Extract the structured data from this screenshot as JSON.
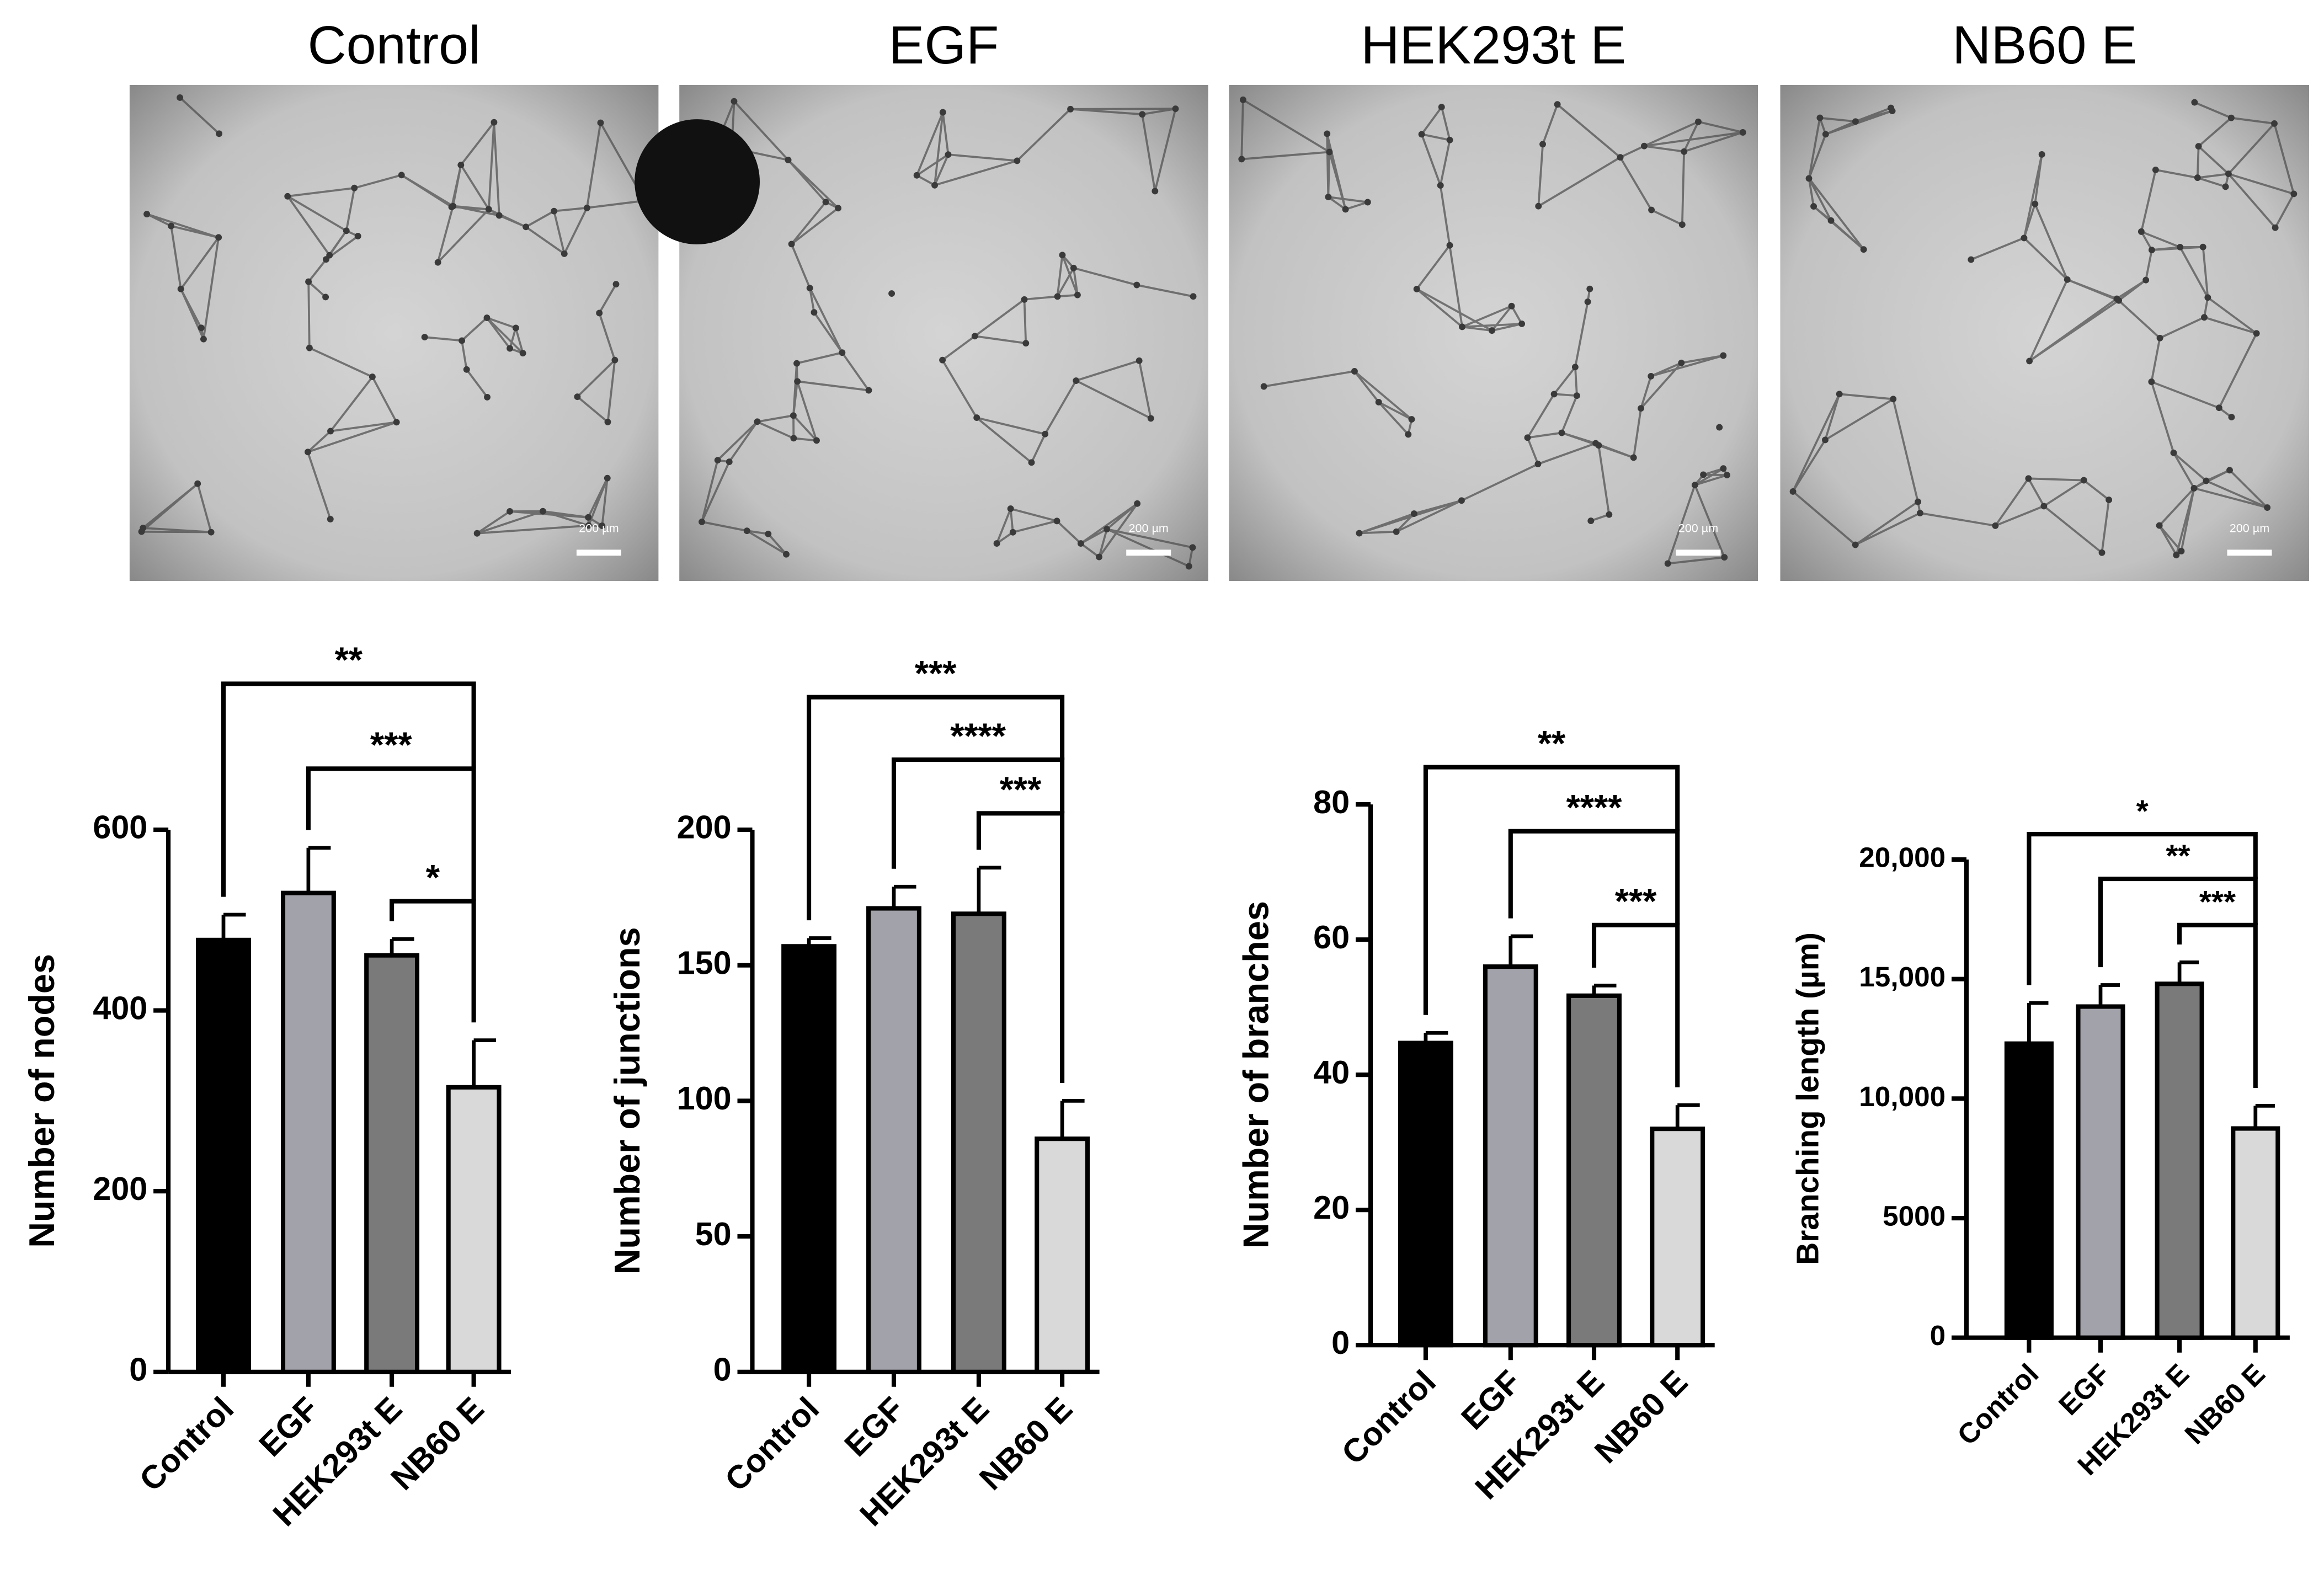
{
  "images": [
    {
      "title": "Control",
      "scale_label": "200 µm"
    },
    {
      "title": "EGF",
      "scale_label": "200 µm"
    },
    {
      "title": "HEK293t E",
      "scale_label": "200 µm"
    },
    {
      "title": "NB60 E",
      "scale_label": "200 µm"
    }
  ],
  "chart_data": [
    {
      "type": "bar",
      "y_label": "Number of nodes",
      "categories": [
        "Control",
        "EGF",
        "HEK293t E",
        "NB60 E"
      ],
      "values": [
        478,
        530,
        461,
        315
      ],
      "errors": [
        28,
        50,
        18,
        52
      ],
      "colors": [
        "#000000",
        "#a2a2aa",
        "#7a7a7a",
        "#d9d9d9"
      ],
      "ylim": [
        0,
        600
      ],
      "yticks": [
        0,
        200,
        400,
        600
      ],
      "comparisons": [
        {
          "from": 0,
          "to": 3,
          "label": "**"
        },
        {
          "from": 1,
          "to": 3,
          "label": "***"
        },
        {
          "from": 2,
          "to": 3,
          "label": "*"
        }
      ]
    },
    {
      "type": "bar",
      "y_label": "Number of junctions",
      "categories": [
        "Control",
        "EGF",
        "HEK293t E",
        "NB60 E"
      ],
      "values": [
        157,
        171,
        169,
        86
      ],
      "errors": [
        3,
        8,
        17,
        14
      ],
      "colors": [
        "#000000",
        "#a2a2aa",
        "#7a7a7a",
        "#d9d9d9"
      ],
      "ylim": [
        0,
        200
      ],
      "yticks": [
        0,
        50,
        100,
        150,
        200
      ],
      "comparisons": [
        {
          "from": 0,
          "to": 3,
          "label": "***"
        },
        {
          "from": 1,
          "to": 3,
          "label": "****"
        },
        {
          "from": 2,
          "to": 3,
          "label": "***"
        }
      ]
    },
    {
      "type": "bar",
      "y_label": "Number of branches",
      "categories": [
        "Control",
        "EGF",
        "HEK293t E",
        "NB60 E"
      ],
      "values": [
        44.7,
        56,
        51.7,
        32
      ],
      "errors": [
        1.5,
        4.5,
        1.5,
        3.5
      ],
      "colors": [
        "#000000",
        "#a2a2aa",
        "#7a7a7a",
        "#d9d9d9"
      ],
      "ylim": [
        0,
        80
      ],
      "yticks": [
        0,
        20,
        40,
        60,
        80
      ],
      "comparisons": [
        {
          "from": 0,
          "to": 3,
          "label": "**"
        },
        {
          "from": 1,
          "to": 3,
          "label": "****"
        },
        {
          "from": 2,
          "to": 3,
          "label": "***"
        }
      ]
    },
    {
      "type": "bar",
      "y_label": "Branching length (µm)",
      "categories": [
        "Control",
        "EGF",
        "HEK293t E",
        "NB60 E"
      ],
      "values": [
        12300,
        13850,
        14800,
        8750
      ],
      "errors": [
        1700,
        900,
        900,
        950
      ],
      "colors": [
        "#000000",
        "#a2a2aa",
        "#7a7a7a",
        "#d9d9d9"
      ],
      "ylim": [
        0,
        20000
      ],
      "yticks": [
        0,
        5000,
        {
          "value": 10000,
          "label": "10,000"
        },
        {
          "value": 15000,
          "label": "15,000"
        },
        {
          "value": 20000,
          "label": "20,000"
        }
      ],
      "comparisons": [
        {
          "from": 0,
          "to": 3,
          "label": "*"
        },
        {
          "from": 1,
          "to": 3,
          "label": "**"
        },
        {
          "from": 2,
          "to": 3,
          "label": "***"
        }
      ]
    }
  ]
}
